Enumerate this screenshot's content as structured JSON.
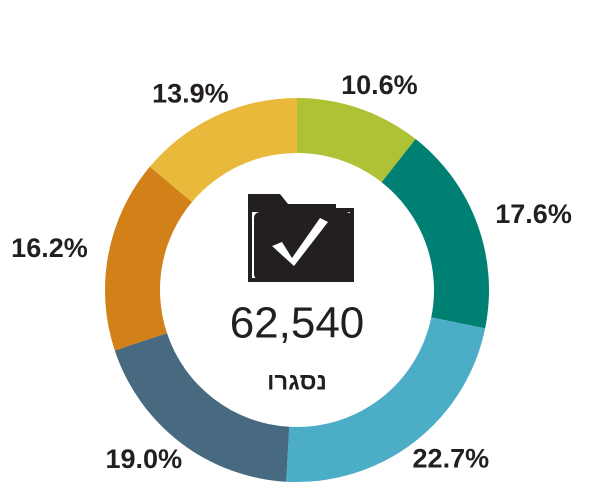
{
  "chart_data": {
    "type": "donut",
    "values": [
      10.6,
      17.6,
      22.7,
      19.0,
      16.2,
      13.9
    ],
    "value_labels": [
      "10.6%",
      "17.6%",
      "22.7%",
      "19.0%",
      "16.2%",
      "13.9%"
    ],
    "colors": [
      "#afc236",
      "#007f73",
      "#4badc6",
      "#476a80",
      "#d28118",
      "#e8b93a"
    ],
    "center_text": "62,540",
    "center_caption": "נסגרו"
  }
}
